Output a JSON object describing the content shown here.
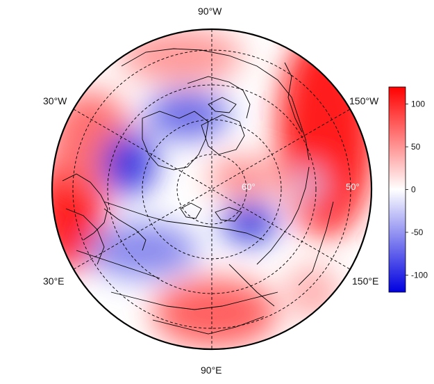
{
  "longitude_labels": {
    "top": "90°W",
    "upper_left": "30°W",
    "upper_right": "150°W",
    "lower_left": "30°E",
    "lower_right": "150°E",
    "bottom": "90°E"
  },
  "latitude_labels": [
    "60°",
    "50°"
  ],
  "colorbar": {
    "min": -120,
    "max": 120,
    "ticks": [
      100,
      50,
      0,
      -50,
      -100
    ],
    "tick_labels": [
      "100",
      "50",
      "0",
      "-50",
      "-100"
    ],
    "colors": {
      "high": "#ff0000",
      "mid": "#ffffff",
      "low": "#0000e0"
    }
  },
  "colors": {
    "coastline": "#000000",
    "grid": "#000000",
    "map_border": "#000000"
  }
}
